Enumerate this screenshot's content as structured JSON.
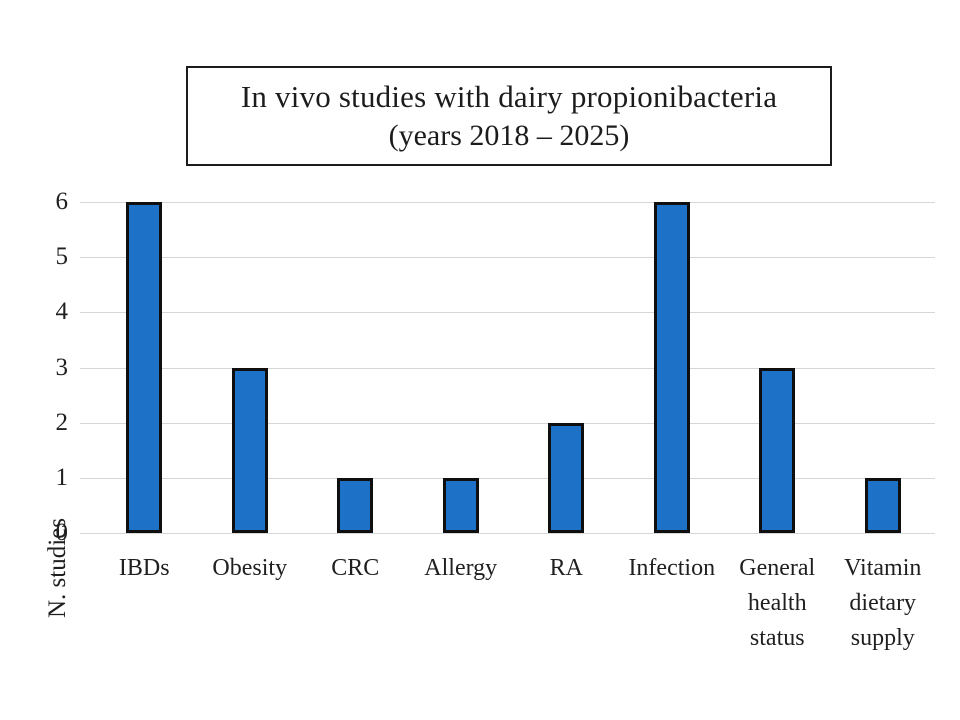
{
  "titleBox": {
    "line1": "In vivo studies with dairy propionibacteria",
    "line2": "(years 2018 – 2025)"
  },
  "chart_data": {
    "type": "bar",
    "title": "In vivo studies with dairy propionibacteria (years 2018 – 2025)",
    "categories": [
      "IBDs",
      "Obesity",
      "CRC",
      "Allergy",
      "RA",
      "Infection",
      "General health status",
      "Vitamin dietary supply"
    ],
    "values": [
      6,
      3,
      1,
      1,
      2,
      6,
      3,
      1
    ],
    "xlabel": "",
    "ylabel": "N. studies",
    "ylim": [
      0,
      6
    ],
    "ytick_interval": 1,
    "yticks": [
      0,
      1,
      2,
      3,
      4,
      5,
      6
    ],
    "grid": true,
    "legend": "none",
    "colors": {
      "bar_fill": "#1d72c8",
      "bar_border": "#0f0f0f",
      "gridline": "#d6d6d6",
      "text": "#1f1f1f"
    }
  }
}
